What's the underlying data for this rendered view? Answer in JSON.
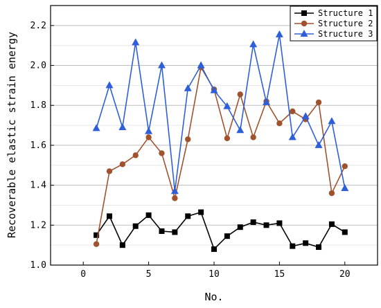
{
  "chart_data": {
    "type": "line",
    "xlabel": "No.",
    "ylabel": "Recoverable elastic strain energy",
    "xlim": [
      -2.5,
      22.5
    ],
    "ylim": [
      1.0,
      2.3
    ],
    "xticks": [
      0,
      5,
      10,
      15,
      20
    ],
    "yticks": [
      1.0,
      1.2,
      1.4,
      1.6,
      1.8,
      2.0,
      2.2
    ],
    "xtick_labels": [
      "0",
      "5",
      "10",
      "15",
      "20"
    ],
    "ytick_labels": [
      "1.0",
      "1.2",
      "1.4",
      "1.6",
      "1.8",
      "2.0",
      "2.2"
    ],
    "grid": "horizontal",
    "legend_position": "top-right",
    "x": [
      1,
      2,
      3,
      4,
      5,
      6,
      7,
      8,
      9,
      10,
      11,
      12,
      13,
      14,
      15,
      16,
      17,
      18,
      19,
      20
    ],
    "series": [
      {
        "name": "Structure 1",
        "color": "#000000",
        "marker": "square",
        "values": [
          1.15,
          1.245,
          1.1,
          1.195,
          1.25,
          1.17,
          1.165,
          1.245,
          1.265,
          1.08,
          1.145,
          1.19,
          1.215,
          1.2,
          1.21,
          1.095,
          1.11,
          1.09,
          1.205,
          1.165
        ]
      },
      {
        "name": "Structure 2",
        "color": "#a0522d",
        "marker": "circle",
        "values": [
          1.105,
          1.47,
          1.505,
          1.55,
          1.64,
          1.56,
          1.335,
          1.63,
          1.99,
          1.88,
          1.635,
          1.855,
          1.64,
          1.82,
          1.71,
          1.77,
          1.73,
          1.815,
          1.36,
          1.495
        ]
      },
      {
        "name": "Structure 3",
        "color": "#2e5fd8",
        "marker": "triangle",
        "values": [
          1.685,
          1.9,
          1.69,
          2.115,
          1.67,
          2.0,
          1.37,
          1.885,
          2.0,
          1.875,
          1.795,
          1.675,
          2.105,
          1.815,
          2.155,
          1.64,
          1.745,
          1.6,
          1.72,
          1.385
        ]
      }
    ]
  }
}
